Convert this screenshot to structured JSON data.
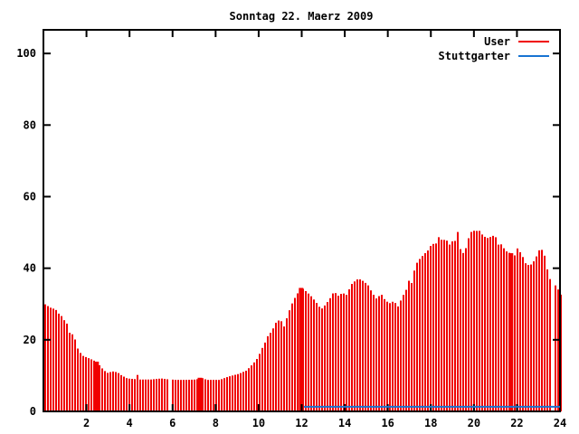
{
  "background": "#ffffff",
  "axis_color": "#000000",
  "chart_data": {
    "type": "bar",
    "title": "Sonntag 22. Maerz 2009",
    "xlabel": "",
    "ylabel": "",
    "xlim": [
      0,
      24
    ],
    "ylim": [
      0,
      106.6
    ],
    "x_ticks": [
      2,
      4,
      6,
      8,
      10,
      12,
      14,
      16,
      18,
      20,
      22,
      24
    ],
    "y_ticks": [
      0,
      20,
      40,
      60,
      80,
      100
    ],
    "grid": false,
    "legend_position": "top-right-inside",
    "bar_pitch_hours": 0.127,
    "series": [
      {
        "name": "User",
        "color": "#f00000",
        "style": "impulses",
        "envelope": [
          [
            0.04,
            30
          ],
          [
            0.3,
            29
          ],
          [
            0.55,
            28.5
          ],
          [
            0.7,
            27.3
          ],
          [
            0.85,
            26.5
          ],
          [
            1.0,
            25
          ],
          [
            1.1,
            24.4
          ],
          [
            1.2,
            22
          ],
          [
            1.4,
            21.3
          ],
          [
            1.6,
            17.3
          ],
          [
            1.8,
            15.6
          ],
          [
            2.0,
            15.1
          ],
          [
            2.2,
            14.6
          ],
          [
            2.45,
            13.9
          ],
          [
            2.65,
            12.6
          ],
          [
            2.8,
            11.5
          ],
          [
            3.0,
            10.7
          ],
          [
            3.2,
            11.2
          ],
          [
            3.45,
            10.9
          ],
          [
            3.6,
            10.2
          ],
          [
            3.9,
            9.2
          ],
          [
            4.3,
            9.0
          ],
          [
            4.38,
            10.2
          ],
          [
            4.5,
            8.9
          ],
          [
            5.0,
            8.9
          ],
          [
            5.5,
            9.2
          ],
          [
            6.0,
            8.8
          ],
          [
            6.5,
            8.8
          ],
          [
            7.0,
            8.9
          ],
          [
            7.25,
            9.4
          ],
          [
            7.5,
            8.8
          ],
          [
            8.1,
            8.8
          ],
          [
            8.5,
            9.7
          ],
          [
            9.0,
            10.5
          ],
          [
            9.35,
            11.4
          ],
          [
            9.55,
            12.6
          ],
          [
            9.75,
            13.9
          ],
          [
            9.9,
            15.1
          ],
          [
            10.05,
            17.2
          ],
          [
            10.2,
            18.9
          ],
          [
            10.35,
            21
          ],
          [
            10.55,
            22.5
          ],
          [
            10.75,
            25
          ],
          [
            10.95,
            25.7
          ],
          [
            11.1,
            23.5
          ],
          [
            11.35,
            28
          ],
          [
            11.55,
            31
          ],
          [
            11.75,
            33
          ],
          [
            11.95,
            34.5
          ],
          [
            12.15,
            33.5
          ],
          [
            12.35,
            32.4
          ],
          [
            12.6,
            30.6
          ],
          [
            12.85,
            28.5
          ],
          [
            13.05,
            29.8
          ],
          [
            13.25,
            31.4
          ],
          [
            13.45,
            33.5
          ],
          [
            13.65,
            32.3
          ],
          [
            13.85,
            33.1
          ],
          [
            14.05,
            32.5
          ],
          [
            14.25,
            35.4
          ],
          [
            14.45,
            36.5
          ],
          [
            14.6,
            37.1
          ],
          [
            14.85,
            36.3
          ],
          [
            15.05,
            35.2
          ],
          [
            15.25,
            33
          ],
          [
            15.45,
            31.4
          ],
          [
            15.65,
            32.9
          ],
          [
            15.85,
            31
          ],
          [
            16.05,
            30.2
          ],
          [
            16.25,
            30.8
          ],
          [
            16.45,
            29.3
          ],
          [
            16.65,
            32
          ],
          [
            16.85,
            34.2
          ],
          [
            17.0,
            37.5
          ],
          [
            17.1,
            35.5
          ],
          [
            17.25,
            40.8
          ],
          [
            17.45,
            42.5
          ],
          [
            17.65,
            43.8
          ],
          [
            17.85,
            45
          ],
          [
            18.05,
            47
          ],
          [
            18.2,
            46.3
          ],
          [
            18.3,
            48.8
          ],
          [
            18.45,
            48.4
          ],
          [
            18.55,
            46.8
          ],
          [
            18.65,
            48.8
          ],
          [
            18.8,
            46.8
          ],
          [
            18.95,
            46.3
          ],
          [
            19.05,
            49.6
          ],
          [
            19.15,
            46.5
          ],
          [
            19.25,
            50.5
          ],
          [
            19.35,
            45.5
          ],
          [
            19.45,
            44.6
          ],
          [
            19.55,
            43.8
          ],
          [
            19.7,
            47.6
          ],
          [
            19.85,
            50
          ],
          [
            19.95,
            50.5
          ],
          [
            20.1,
            50.4
          ],
          [
            20.25,
            50.5
          ],
          [
            20.35,
            49.6
          ],
          [
            20.5,
            48.8
          ],
          [
            20.65,
            48.4
          ],
          [
            20.8,
            48.8
          ],
          [
            20.95,
            49.2
          ],
          [
            21.05,
            48.4
          ],
          [
            21.15,
            46.5
          ],
          [
            21.3,
            46.7
          ],
          [
            21.45,
            45
          ],
          [
            21.6,
            44.4
          ],
          [
            21.7,
            44.2
          ],
          [
            21.9,
            43.4
          ],
          [
            22.0,
            45.8
          ],
          [
            22.15,
            44.6
          ],
          [
            22.3,
            43
          ],
          [
            22.45,
            40.9
          ],
          [
            22.65,
            40.9
          ],
          [
            22.85,
            42.3
          ],
          [
            23.05,
            45
          ],
          [
            23.25,
            45.2
          ],
          [
            23.4,
            40.5
          ],
          [
            23.5,
            37.9
          ],
          [
            23.65,
            35.5
          ],
          [
            23.8,
            34.2
          ],
          [
            23.95,
            32.5
          ]
        ],
        "solid_columns": [
          [
            2.45,
            13.9
          ],
          [
            7.25,
            9.4
          ],
          [
            11.95,
            34.5
          ],
          [
            21.7,
            44.2
          ]
        ]
      },
      {
        "name": "Stuttgarter",
        "color": "#1874d2",
        "style": "line",
        "points": [
          [
            12.1,
            1.3
          ],
          [
            24,
            1.3
          ]
        ]
      }
    ]
  }
}
